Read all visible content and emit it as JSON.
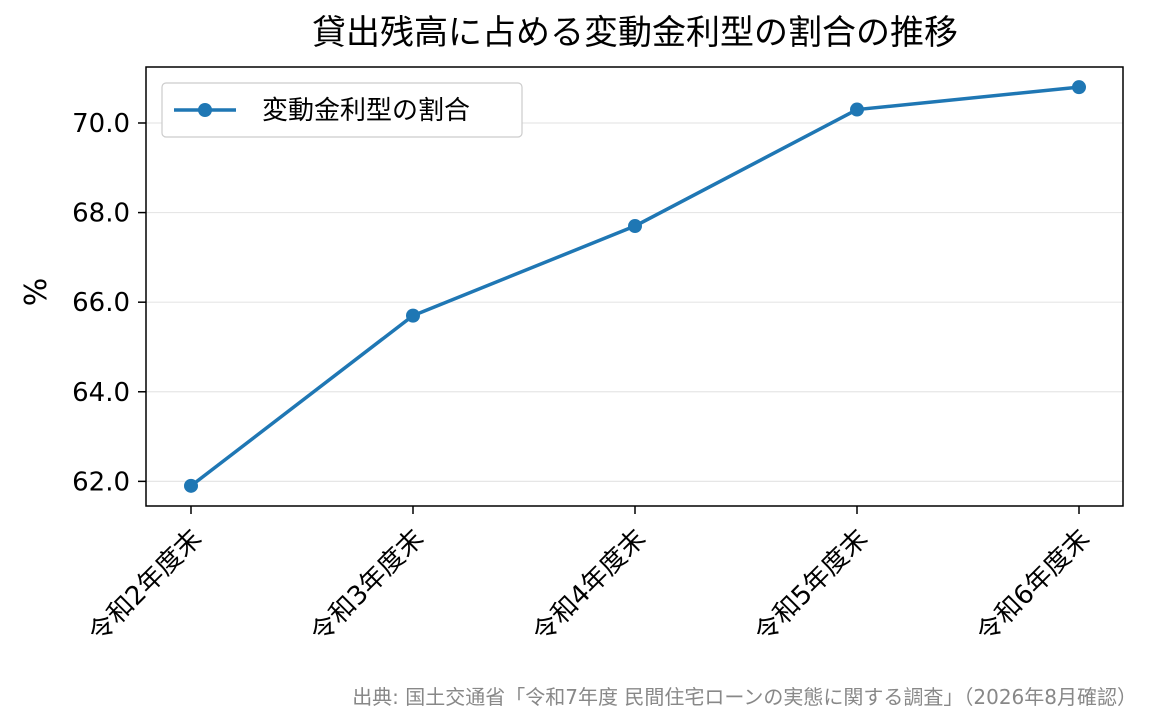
{
  "chart_data": {
    "type": "line",
    "title": "貸出残高に占める変動金利型の割合の推移",
    "xlabel": "",
    "ylabel": "%",
    "categories": [
      "令和2年度末",
      "令和3年度末",
      "令和4年度末",
      "令和5年度末",
      "令和6年度末"
    ],
    "series": [
      {
        "name": "変動金利型の割合",
        "values": [
          61.9,
          65.7,
          67.7,
          70.3,
          70.8
        ],
        "color": "#1f77b4"
      }
    ],
    "ylim": [
      61.45,
      71.25
    ],
    "yticks": [
      62.0,
      64.0,
      66.0,
      68.0,
      70.0
    ],
    "ytick_labels": [
      "62.0",
      "64.0",
      "66.0",
      "68.0",
      "70.0"
    ],
    "grid": "horizontal",
    "legend_position": "upper-left"
  },
  "source_note": "出典: 国土交通省「令和7年度 民間住宅ローンの実態に関する調査」（2026年8月確認）"
}
